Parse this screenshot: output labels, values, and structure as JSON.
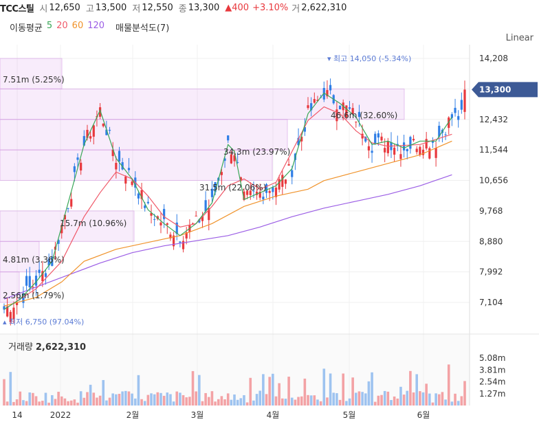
{
  "header": {
    "symbol": "TCC스틸",
    "open_label": "시",
    "open": "12,650",
    "high_label": "고",
    "high": "13,500",
    "low_label": "저",
    "low": "12,550",
    "close_label": "종",
    "close": "13,300",
    "change": "▲400",
    "change_pct": "+3.10%",
    "volume_label": "거",
    "volume": "2,622,310"
  },
  "ma_legend": {
    "label": "이동평균",
    "periods": [
      "5",
      "20",
      "60",
      "120"
    ],
    "colors": [
      "#3aa757",
      "#f05a6a",
      "#f0932b",
      "#9b5de5"
    ],
    "profile_label": "매물분석도(7)"
  },
  "scale_button": "Linear",
  "volume_panel": {
    "label": "거래량",
    "value": "2,622,310"
  },
  "chart_data": {
    "type": "candlestick",
    "price_axis": {
      "ticks": [
        "14,208",
        "13,320",
        "12,432",
        "11,544",
        "10,656",
        "9,768",
        "8,880",
        "7,992",
        "7,104"
      ],
      "tick_values": [
        14208,
        13320,
        12432,
        11544,
        10656,
        9768,
        8880,
        7992,
        7104
      ]
    },
    "current_price": {
      "label": "13,300",
      "value": 13300
    },
    "x_axis_labels": [
      "14",
      "2022",
      "2월",
      "3월",
      "4월",
      "5월",
      "6월"
    ],
    "annotations": {
      "max": {
        "label": "최고",
        "value_text": "14,050 (-5.34%)",
        "value": 14050
      },
      "min": {
        "label": "최저",
        "value_text": "6,750 (97.04%)",
        "value": 6750
      }
    },
    "volume_profile_labels": [
      {
        "text": "7.51m (5.25%)",
        "price_low": 13320,
        "price_high": 14208
      },
      {
        "text": "46.6m (32.60%)",
        "price_low": 12432,
        "price_high": 13320
      },
      {
        "text": "34.3m (23.97%)",
        "price_low": 11544,
        "price_high": 12432
      },
      {
        "text": "31.5m (22.06%)",
        "price_low": 10656,
        "price_high": 11544
      },
      {
        "text": "15.7m (10.96%)",
        "price_low": 8880,
        "price_high": 9768
      },
      {
        "text": "4.81m (3.36%)",
        "price_low": 7992,
        "price_high": 8880
      },
      {
        "text": "2.56m (1.79%)",
        "price_low": 7104,
        "price_high": 7992
      }
    ],
    "volume_axis": {
      "ticks": [
        "5.08m",
        "3.81m",
        "2.54m",
        "1.27m"
      ],
      "tick_values": [
        5.08,
        3.81,
        2.54,
        1.27
      ]
    },
    "ma_series": {
      "ma120": [
        [
          0,
          7200
        ],
        [
          10,
          7550
        ],
        [
          20,
          7900
        ],
        [
          30,
          8250
        ],
        [
          40,
          8550
        ],
        [
          50,
          8750
        ],
        [
          60,
          8900
        ],
        [
          70,
          9050
        ],
        [
          80,
          9300
        ],
        [
          90,
          9600
        ],
        [
          100,
          9850
        ],
        [
          110,
          10050
        ],
        [
          120,
          10250
        ],
        [
          130,
          10500
        ],
        [
          140,
          10820
        ]
      ],
      "ma60": [
        [
          0,
          7000
        ],
        [
          10,
          7250
        ],
        [
          18,
          7700
        ],
        [
          25,
          8300
        ],
        [
          35,
          8650
        ],
        [
          45,
          8850
        ],
        [
          55,
          9050
        ],
        [
          65,
          9400
        ],
        [
          75,
          9900
        ],
        [
          85,
          10200
        ],
        [
          95,
          10400
        ],
        [
          100,
          10650
        ],
        [
          110,
          10900
        ],
        [
          120,
          11150
        ],
        [
          130,
          11400
        ],
        [
          140,
          11800
        ]
      ],
      "ma20": [
        [
          0,
          6900
        ],
        [
          10,
          7500
        ],
        [
          18,
          8300
        ],
        [
          25,
          9600
        ],
        [
          30,
          10300
        ],
        [
          35,
          10900
        ],
        [
          40,
          10700
        ],
        [
          45,
          10200
        ],
        [
          50,
          9600
        ],
        [
          55,
          9300
        ],
        [
          60,
          9400
        ],
        [
          65,
          9900
        ],
        [
          70,
          10500
        ],
        [
          75,
          10700
        ],
        [
          80,
          10400
        ],
        [
          85,
          10600
        ],
        [
          90,
          11500
        ],
        [
          95,
          12400
        ],
        [
          100,
          12800
        ],
        [
          105,
          12600
        ],
        [
          110,
          12100
        ],
        [
          115,
          11750
        ],
        [
          120,
          11650
        ],
        [
          130,
          11700
        ],
        [
          140,
          12000
        ]
      ],
      "ma5": [
        [
          0,
          6900
        ],
        [
          5,
          7200
        ],
        [
          10,
          7700
        ],
        [
          15,
          8300
        ],
        [
          20,
          10000
        ],
        [
          25,
          11700
        ],
        [
          30,
          12700
        ],
        [
          35,
          11300
        ],
        [
          40,
          10700
        ],
        [
          45,
          9800
        ],
        [
          50,
          9400
        ],
        [
          55,
          9050
        ],
        [
          60,
          9400
        ],
        [
          65,
          10000
        ],
        [
          70,
          11700
        ],
        [
          72,
          11500
        ],
        [
          75,
          10100
        ],
        [
          80,
          10300
        ],
        [
          85,
          10500
        ],
        [
          90,
          11000
        ],
        [
          95,
          12600
        ],
        [
          100,
          13200
        ],
        [
          105,
          12900
        ],
        [
          110,
          12500
        ],
        [
          115,
          11700
        ],
        [
          120,
          11800
        ],
        [
          125,
          11600
        ],
        [
          130,
          11800
        ],
        [
          135,
          11800
        ],
        [
          140,
          12500
        ]
      ]
    }
  }
}
